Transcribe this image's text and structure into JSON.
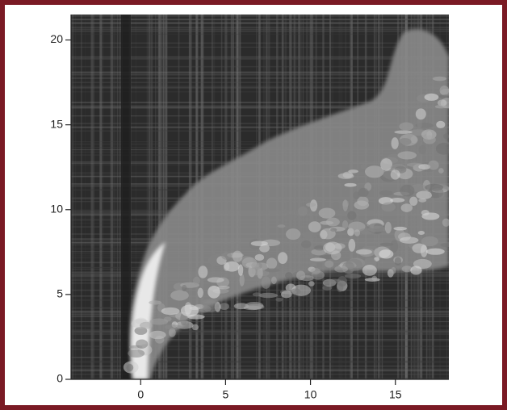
{
  "chart_data": {
    "type": "image",
    "xlim": [
      -4.1,
      18.15
    ],
    "ylim": [
      0,
      21.5
    ],
    "xticks": [
      0,
      5,
      10,
      15
    ],
    "yticks": [
      0,
      5,
      10,
      15,
      20
    ]
  }
}
